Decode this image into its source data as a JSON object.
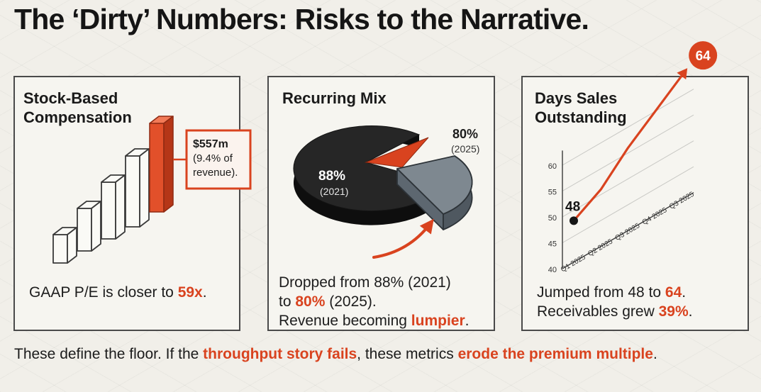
{
  "title": "The ‘Dirty’ Numbers: Risks to the Narrative.",
  "panels": {
    "sbc": {
      "heading": "Stock-Based\nCompensation",
      "callout": [
        "$557m",
        "(9.4% of",
        "revenue)."
      ],
      "caption_pre": "GAAP P/E is closer to ",
      "caption_highlight": "59x",
      "caption_post": "."
    },
    "recurring": {
      "heading": "Recurring Mix",
      "label_2021_pct": "88%",
      "label_2021_year": "(2021)",
      "label_2025_pct": "80%",
      "label_2025_year": "(2025)",
      "line1": "Dropped from 88% (2021)",
      "line2_pre": "to ",
      "line2_highlight": "80%",
      "line2_post": " (2025).",
      "line3_pre": "Revenue becoming ",
      "line3_highlight": "lumpier",
      "line3_post": "."
    },
    "dso": {
      "heading": "Days Sales\nOutstanding",
      "chart_data": {
        "type": "line",
        "title": "Days Sales Outstanding",
        "x": [
          "Q1 2025",
          "Q2 2025",
          "Q3 2025",
          "Q4 2025",
          "Q3 2025"
        ],
        "series": [
          {
            "values": [
              48,
              51,
              56,
              60,
              64
            ]
          }
        ],
        "y_ticks": [
          40,
          45,
          50,
          55,
          60
        ],
        "ylim": [
          40,
          62
        ],
        "start_label": "48",
        "end_label": "64",
        "grid": true
      },
      "line1_pre": "Jumped from 48 to ",
      "line1_highlight": "64",
      "line1_post": ".",
      "line2_pre": "Receivables grew ",
      "line2_highlight": "39%",
      "line2_post": "."
    }
  },
  "footer": {
    "pre": "These define the floor. If the ",
    "highlight1": "throughput story fails",
    "mid": ", these metrics ",
    "highlight2": "erode the premium multiple",
    "post": "."
  },
  "colors": {
    "accent": "#d9431f",
    "dark": "#1c1c1c",
    "slate": "#7e8890",
    "outline": "#4a4a4a"
  }
}
